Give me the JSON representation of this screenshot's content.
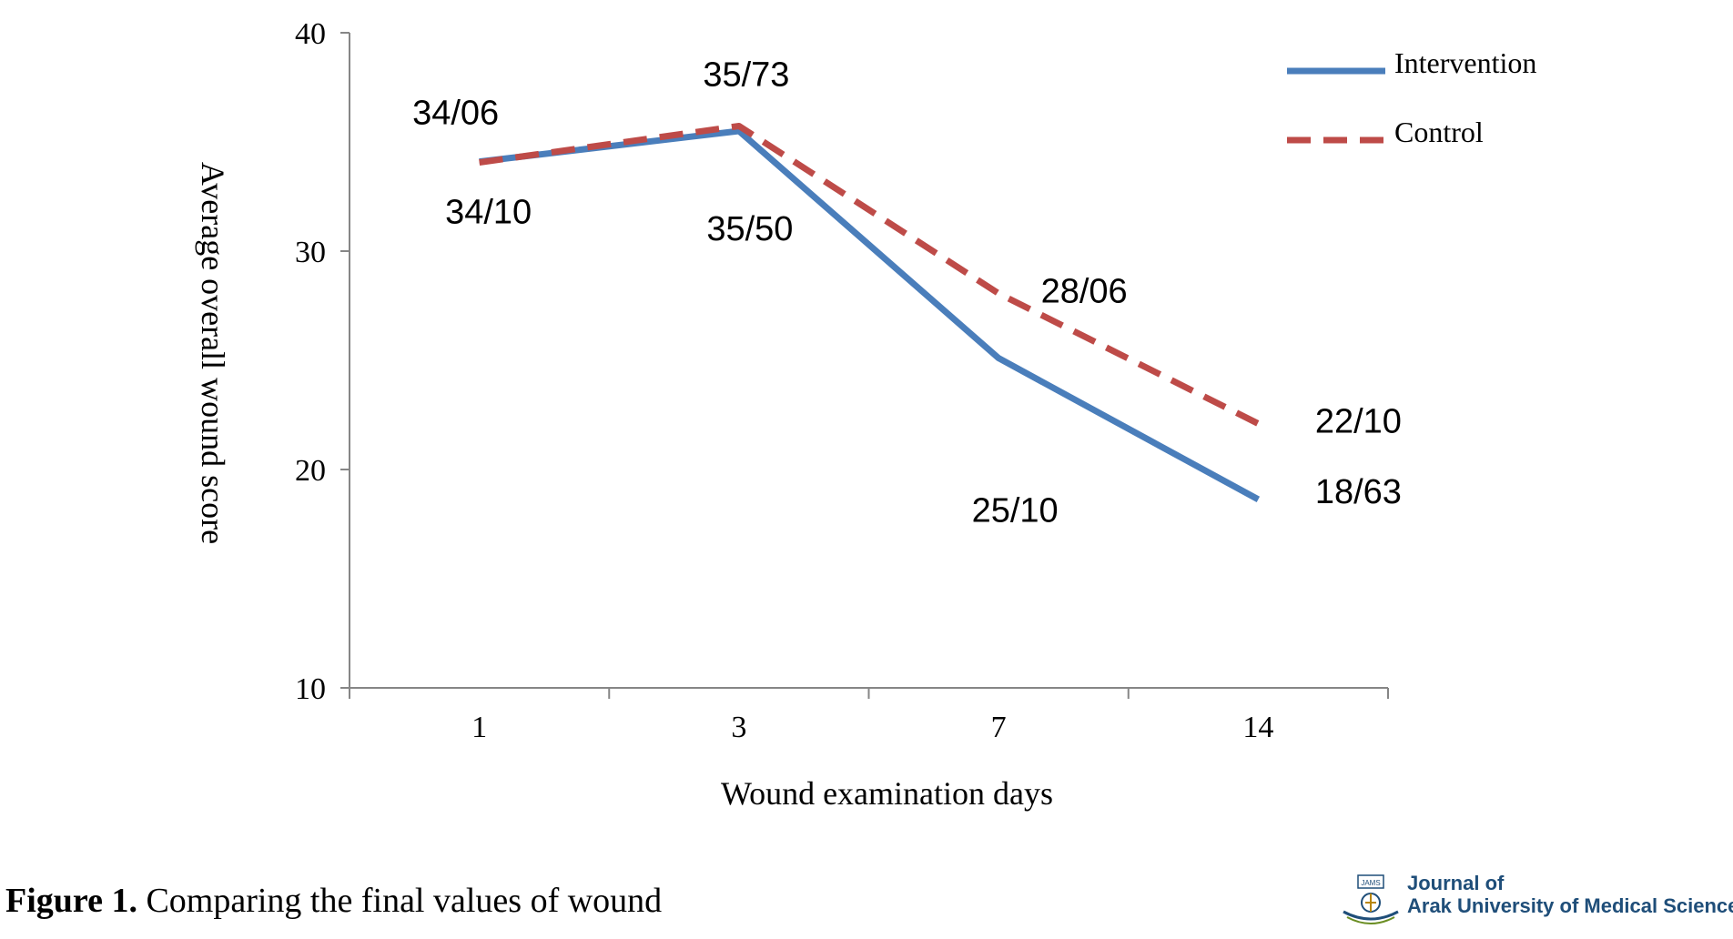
{
  "chart_data": {
    "type": "line",
    "categories": [
      "1",
      "3",
      "7",
      "14"
    ],
    "series": [
      {
        "name": "Intervention",
        "values": [
          34.1,
          35.5,
          25.1,
          18.63
        ],
        "labels": [
          "34/10",
          "35/50",
          "25/10",
          "18/63"
        ],
        "color": "#4a7ebb",
        "dash": "solid"
      },
      {
        "name": "Control",
        "values": [
          34.06,
          35.73,
          28.06,
          22.1
        ],
        "labels": [
          "34/06",
          "35/73",
          "28/06",
          "22/10"
        ],
        "color": "#be4b48",
        "dash": "dashed"
      }
    ],
    "ylim": [
      10,
      40
    ],
    "yticks": [
      "10",
      "20",
      "30",
      "40"
    ],
    "xlabel": "Wound examination days",
    "ylabel": "Average overall wound score",
    "legend_position": "top-right",
    "grid": false
  },
  "caption": {
    "label": "Figure 1.",
    "text": " Comparing the final values of wound"
  },
  "logo": {
    "badge": "JAMS",
    "line1": "Journal of",
    "line2": "Arak University of Medical Sciences"
  }
}
